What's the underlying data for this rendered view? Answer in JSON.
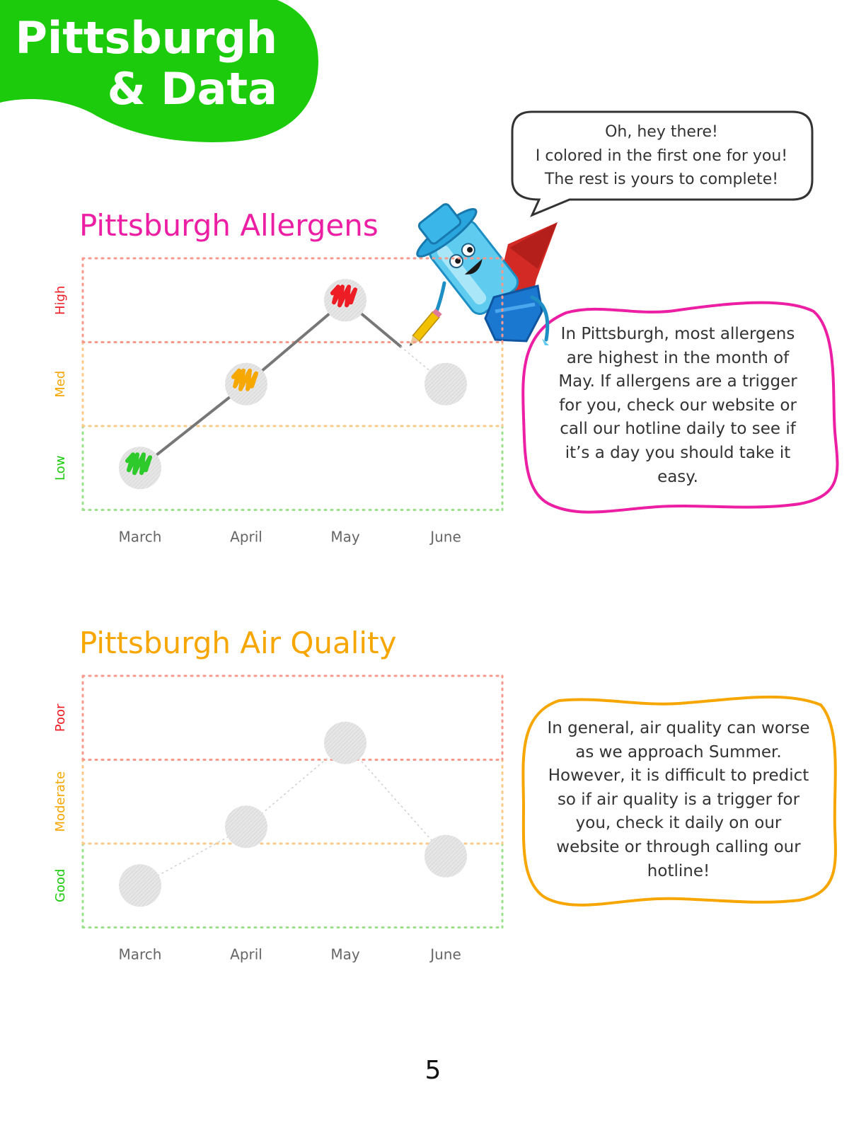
{
  "header": {
    "title_line1": "Pittsburgh",
    "title_line2": "& Data"
  },
  "speech": {
    "line1": "Oh, hey there!",
    "line2": "I colored in the first one for you!",
    "line3": "The rest is yours to complete!"
  },
  "allergen_note": {
    "text": "In Pittsburgh, most allergens are highest in the month of May. If allergens are a trigger for you, check our website or call our hotline daily to see if it’s a day you should take it easy."
  },
  "air_note": {
    "text": "In general, air quality can worse as we approach Summer. However, it is difficult to predict so if air quality is a trigger for you, check it daily on our website or through calling our hotline!"
  },
  "page_number": "5",
  "colors": {
    "brand_green": "#1ccb0b",
    "allergen_title": "#ec1fa4",
    "air_title": "#f7a600",
    "high_red": "#ee1c24",
    "med_orange": "#f7a600",
    "low_green": "#1ccb0b",
    "line_gray": "#777777",
    "empty_marker": "#e6e6e6"
  },
  "chart_data": [
    {
      "type": "line",
      "title": "Pittsburgh Allergens",
      "categories": [
        "March",
        "April",
        "May",
        "June"
      ],
      "levels": [
        "Low",
        "Med",
        "High"
      ],
      "values": [
        "Low",
        "Med",
        "High",
        "Med"
      ],
      "filled": [
        true,
        true,
        true,
        false
      ],
      "marker_colors": [
        "#2ec92a",
        "#f7a800",
        "#ee1c24",
        null
      ],
      "band_colors": [
        "#9be08a",
        "#fbc98a",
        "#f59a8c"
      ],
      "label_colors": [
        "#1ccb0b",
        "#f7a600",
        "#ee1c24"
      ],
      "grid": true
    },
    {
      "type": "line",
      "title": "Pittsburgh Air Quality",
      "categories": [
        "March",
        "April",
        "May",
        "June"
      ],
      "levels": [
        "Good",
        "Moderate",
        "Poor"
      ],
      "values": [
        1,
        1.7,
        2.7,
        1.35
      ],
      "filled": [
        false,
        false,
        false,
        false
      ],
      "marker_colors": [
        null,
        null,
        null,
        null
      ],
      "band_colors": [
        "#9be08a",
        "#fbc98a",
        "#f59a8c"
      ],
      "label_colors": [
        "#1ccb0b",
        "#f7a600",
        "#ee1c24"
      ],
      "grid": true
    }
  ]
}
